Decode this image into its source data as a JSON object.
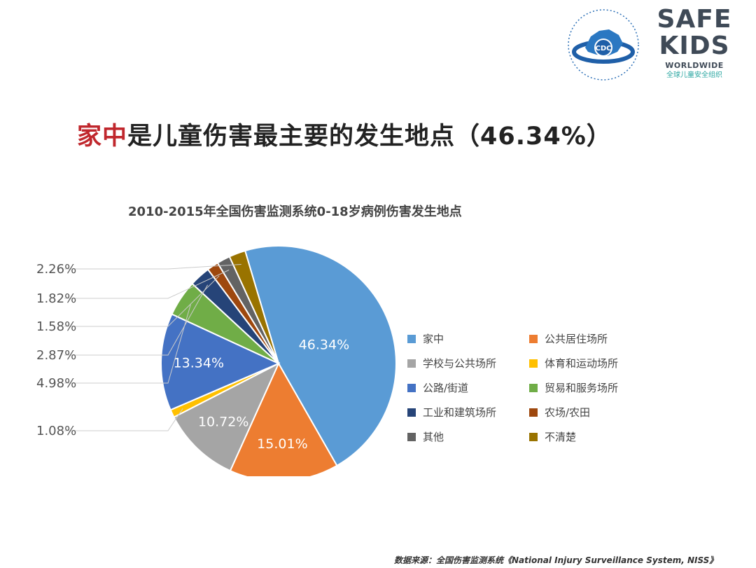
{
  "logos": {
    "cdc": {
      "badge": "CDC"
    },
    "safe_kids": {
      "line1": "SAFE",
      "line2": "KIDS",
      "line3": "WORLDWIDE",
      "line4": "全球儿童安全组织"
    }
  },
  "headline": {
    "highlight": "家中",
    "rest": "是儿童伤害最主要的发生地点（46.34%）",
    "highlight_color": "#c0272d"
  },
  "chart_data": {
    "type": "pie",
    "title": "2010-2015年全国伤害监测系统0-18岁病例伤害发生地点",
    "legend_position": "right",
    "slices": [
      {
        "name": "家中",
        "value": 46.34,
        "label": "46.34%",
        "color": "#5a9bd5"
      },
      {
        "name": "公共居住场所",
        "value": 15.01,
        "label": "15.01%",
        "color": "#ed7d31"
      },
      {
        "name": "学校与公共场所",
        "value": 10.72,
        "label": "10.72%",
        "color": "#a5a5a5"
      },
      {
        "name": "体育和运动场所",
        "value": 1.08,
        "label": "1.08%",
        "color": "#ffc000"
      },
      {
        "name": "公路/街道",
        "value": 13.34,
        "label": "13.34%",
        "color": "#4472c4"
      },
      {
        "name": "贸易和服务场所",
        "value": 4.98,
        "label": "4.98%",
        "color": "#70ad47"
      },
      {
        "name": "工业和建筑场所",
        "value": 2.87,
        "label": "2.87%",
        "color": "#264478"
      },
      {
        "name": "农场/农田",
        "value": 1.58,
        "label": "1.58%",
        "color": "#9e480e"
      },
      {
        "name": "其他",
        "value": 1.82,
        "label": "1.82%",
        "color": "#636363"
      },
      {
        "name": "不清楚",
        "value": 2.26,
        "label": "2.26%",
        "color": "#997300"
      }
    ]
  },
  "source": "数据来源：全国伤害监测系统《National Injury Surveillance System, NISS》"
}
